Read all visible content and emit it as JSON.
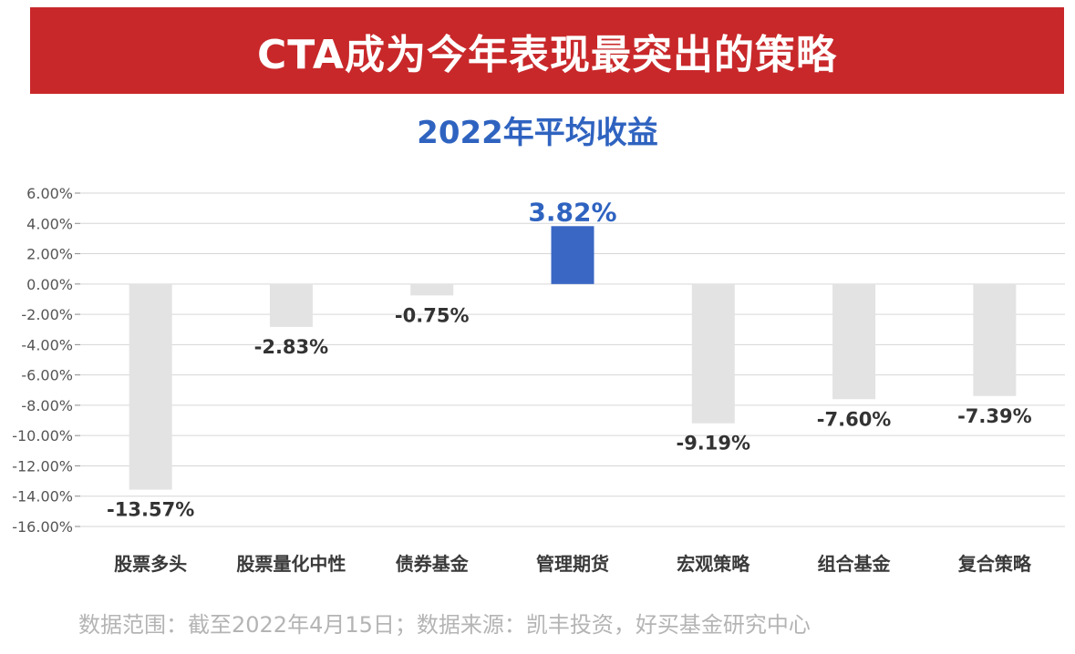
{
  "header": {
    "title": "CTA成为今年表现最突出的策略"
  },
  "chart_data": {
    "type": "bar",
    "title": "2022年平均收益",
    "categories": [
      "股票多头",
      "股票量化中性",
      "债券基金",
      "管理期货",
      "宏观策略",
      "组合基金",
      "复合策略"
    ],
    "values": [
      -13.57,
      -2.83,
      -0.75,
      3.82,
      -9.19,
      -7.6,
      -7.39
    ],
    "data_labels": [
      "-13.57%",
      "-2.83%",
      "-0.75%",
      "3.82%",
      "-9.19%",
      "-7.60%",
      "-7.39%"
    ],
    "highlight_index": 3,
    "ylim": [
      -16,
      6
    ],
    "yticks": [
      6,
      4,
      2,
      0,
      -2,
      -4,
      -6,
      -8,
      -10,
      -12,
      -14,
      -16
    ],
    "ytick_labels": [
      "6.00%",
      "4.00%",
      "2.00%",
      "0.00%",
      "-2.00%",
      "-4.00%",
      "-6.00%",
      "-8.00%",
      "-10.00%",
      "-12.00%",
      "-14.00%",
      "-16.00%"
    ],
    "xlabel": "",
    "ylabel": "",
    "grid": true,
    "legend": "none",
    "colors": {
      "bar": "#e3e3e3",
      "highlight": "#3a67c4",
      "highlight_label": "#2f63c0",
      "label": "#333333",
      "grid": "#d6d6d6"
    }
  },
  "footer": {
    "source": "数据范围：截至2022年4月15日；数据来源：凯丰投资，好买基金研究中心"
  }
}
